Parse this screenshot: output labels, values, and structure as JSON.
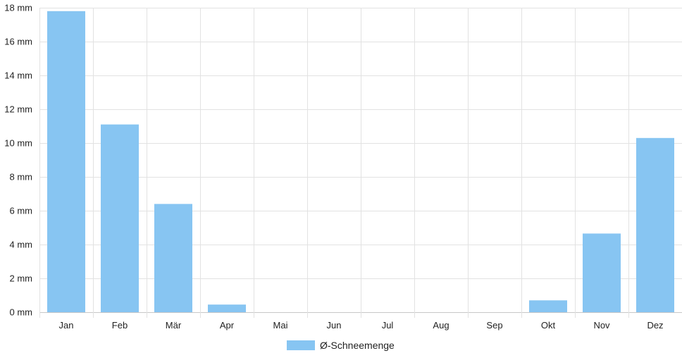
{
  "chart_data": {
    "type": "bar",
    "categories": [
      "Jan",
      "Feb",
      "Mär",
      "Apr",
      "Mai",
      "Jun",
      "Jul",
      "Aug",
      "Sep",
      "Okt",
      "Nov",
      "Dez"
    ],
    "series": [
      {
        "name": "Ø-Schneemenge",
        "values": [
          17.8,
          11.1,
          6.4,
          0.45,
          0,
          0,
          0,
          0,
          0,
          0.7,
          4.65,
          10.3
        ],
        "color": "#87c5f2"
      }
    ],
    "title": "",
    "xlabel": "",
    "ylabel": "",
    "ylim": [
      0,
      18
    ],
    "ytick_step": 2,
    "y_unit": "mm",
    "grid": true,
    "legend": "bottom-center"
  }
}
